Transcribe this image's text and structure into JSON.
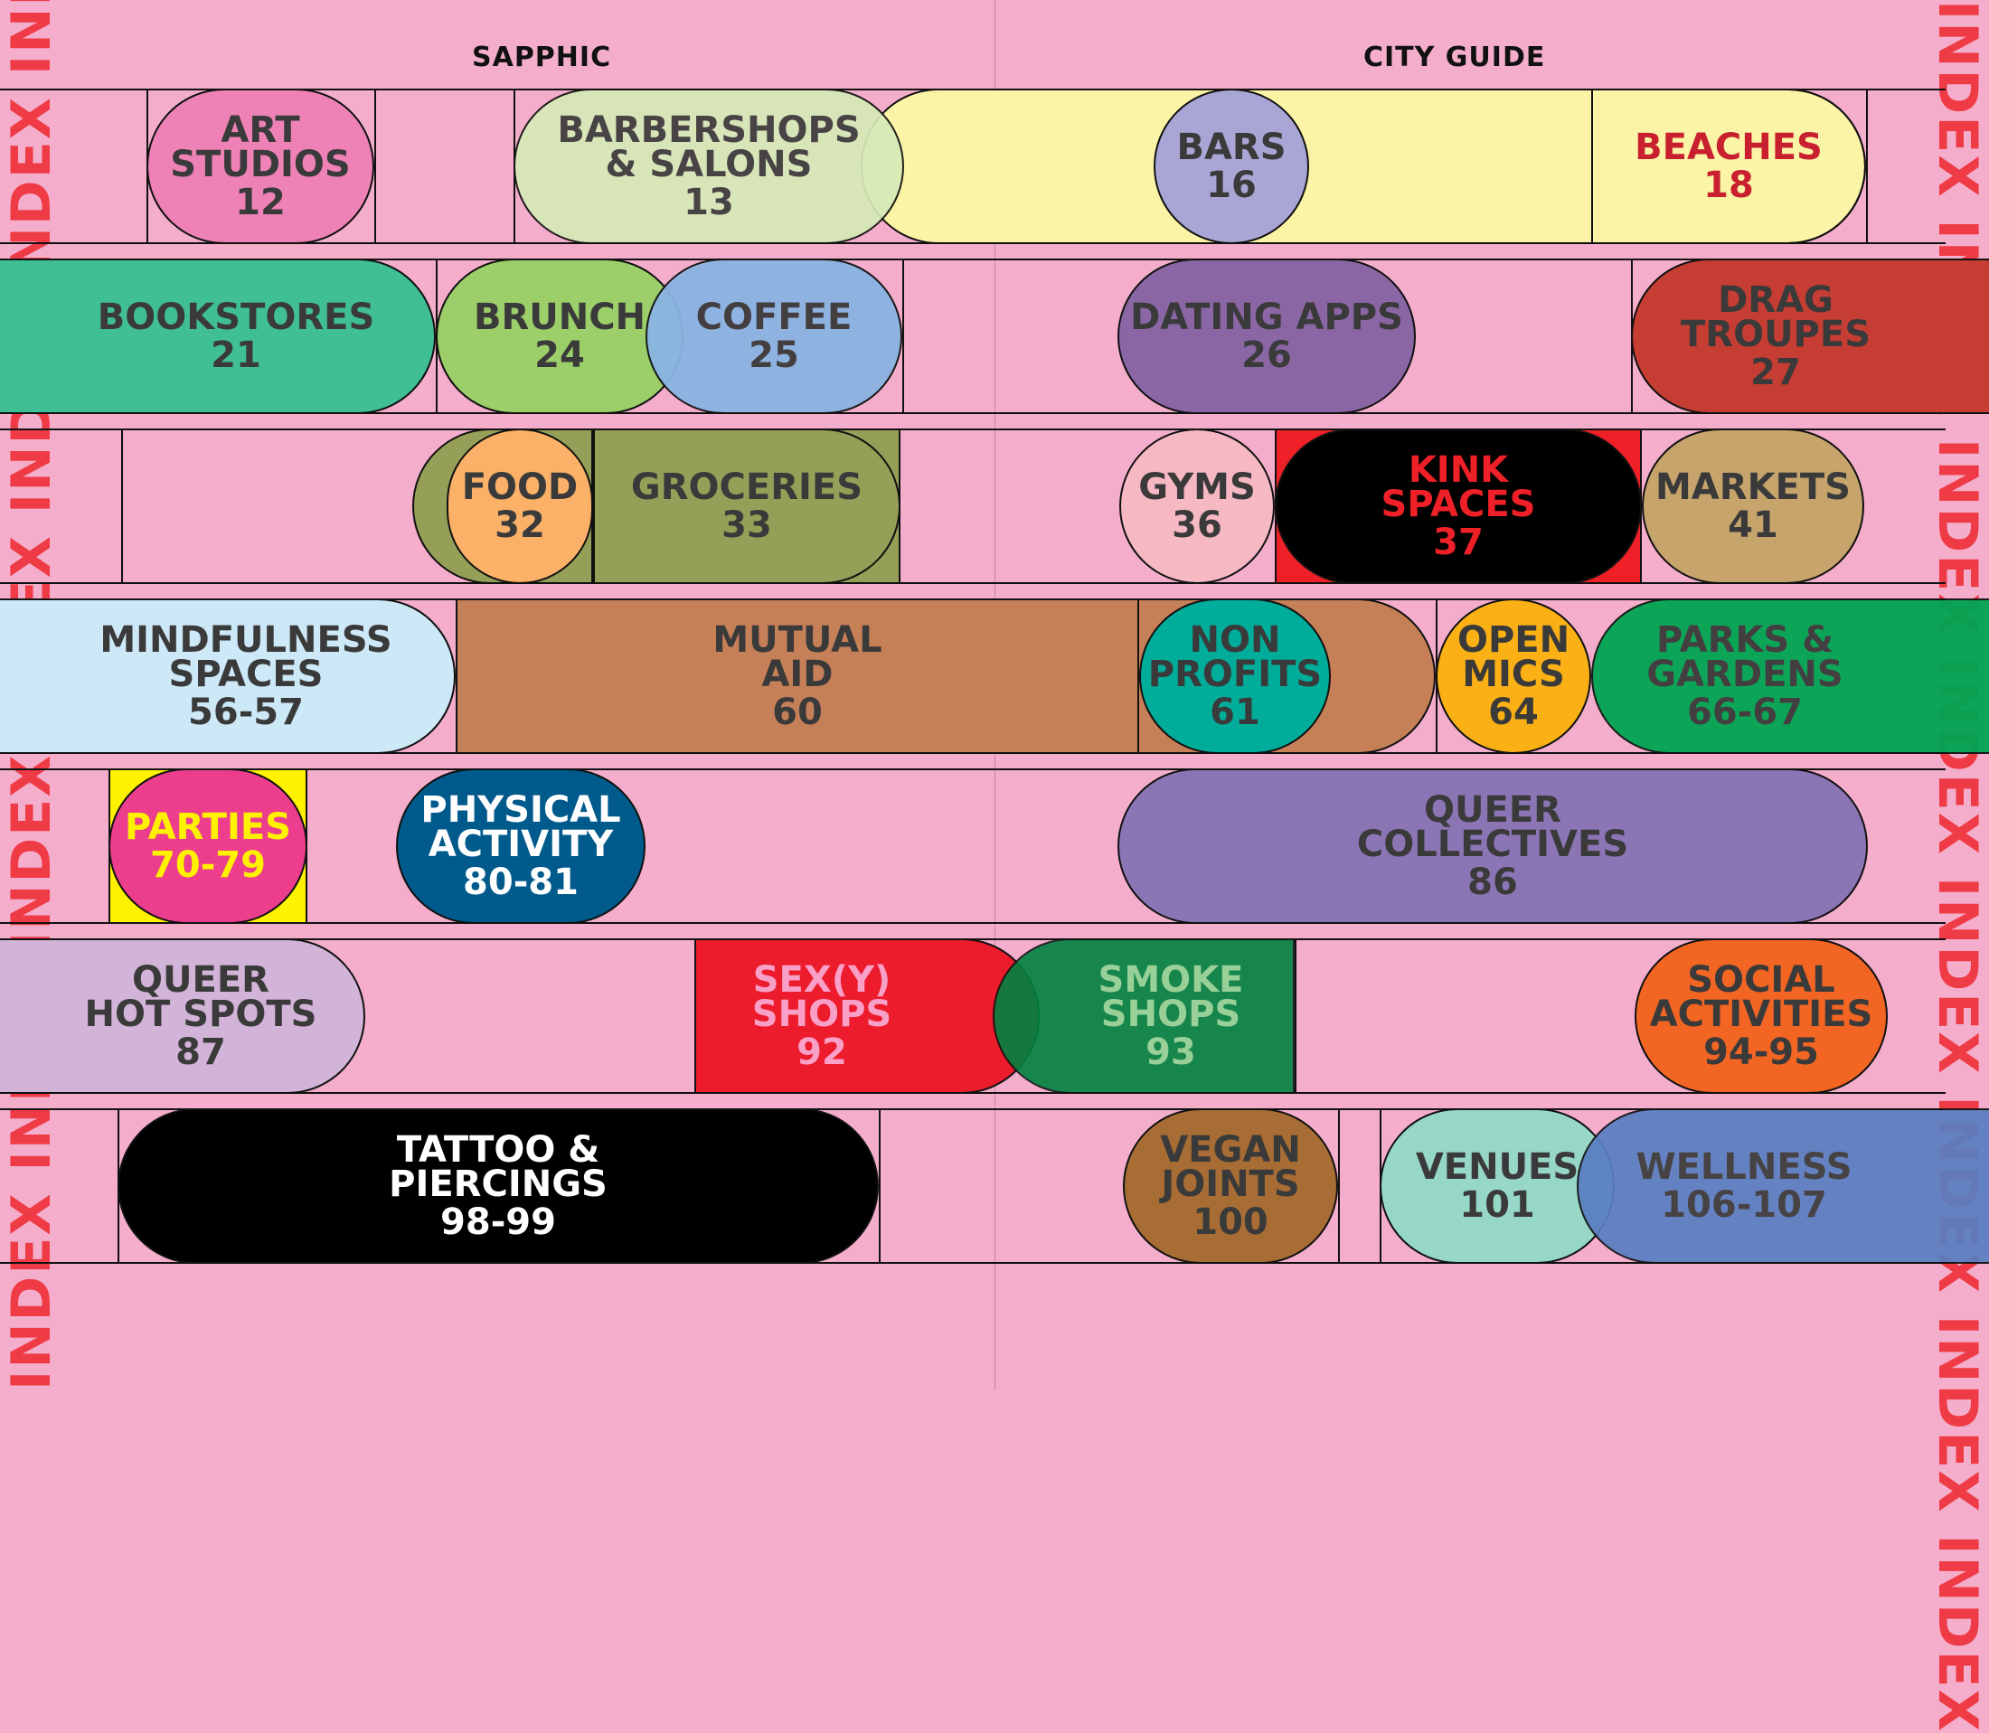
{
  "header": {
    "left_title": "SAPPHIC",
    "right_title": "CITY GUIDE"
  },
  "side_text": "INDEX INDEX INDEX INDEX INDEX INDEX INDEX INDEX",
  "colors": {
    "background": "#f4aecb",
    "side_text": "#ef3b45"
  },
  "entries": [
    {
      "label": "ART\nSTUDIOS",
      "pages": "12"
    },
    {
      "label": "BARBERSHOPS\n& SALONS",
      "pages": "13"
    },
    {
      "label": "BARS",
      "pages": "16"
    },
    {
      "label": "BEACHES",
      "pages": "18"
    },
    {
      "label": "BOOKSTORES",
      "pages": "21"
    },
    {
      "label": "BRUNCH",
      "pages": "24"
    },
    {
      "label": "COFFEE",
      "pages": "25"
    },
    {
      "label": "DATING APPS",
      "pages": "26"
    },
    {
      "label": "DRAG\nTROUPES",
      "pages": "27"
    },
    {
      "label": "FOOD",
      "pages": "32"
    },
    {
      "label": "GROCERIES",
      "pages": "33"
    },
    {
      "label": "GYMS",
      "pages": "36"
    },
    {
      "label": "KINK\nSPACES",
      "pages": "37"
    },
    {
      "label": "MARKETS",
      "pages": "41"
    },
    {
      "label": "MINDFULNESS\nSPACES",
      "pages": "56-57"
    },
    {
      "label": "MUTUAL\nAID",
      "pages": "60"
    },
    {
      "label": "NON\nPROFITS",
      "pages": "61"
    },
    {
      "label": "OPEN\nMICS",
      "pages": "64"
    },
    {
      "label": "PARKS &\nGARDENS",
      "pages": "66-67"
    },
    {
      "label": "PARTIES",
      "pages": "70-79"
    },
    {
      "label": "PHYSICAL\nACTIVITY",
      "pages": "80-81"
    },
    {
      "label": "QUEER\nCOLLECTIVES",
      "pages": "86"
    },
    {
      "label": "QUEER\nHOT SPOTS",
      "pages": "87"
    },
    {
      "label": "SEX(Y)\nSHOPS",
      "pages": "92"
    },
    {
      "label": "SMOKE\nSHOPS",
      "pages": "93"
    },
    {
      "label": "SOCIAL\nACTIVITIES",
      "pages": "94-95"
    },
    {
      "label": "TATTOO &\nPIERCINGS",
      "pages": "98-99"
    },
    {
      "label": "VEGAN\nJOINTS",
      "pages": "100"
    },
    {
      "label": "VENUES",
      "pages": "101"
    },
    {
      "label": "WELLNESS",
      "pages": "106-107"
    }
  ],
  "entry_styles": [
    {
      "fill": "#ee82b6",
      "text": "#3a3a3a"
    },
    {
      "fill": "#d6eab7",
      "text": "#3a3a3a"
    },
    {
      "fill": "#a9a6d6",
      "text": "#3a3a3a"
    },
    {
      "fill": "#fbf3a5",
      "text": "#c8202f"
    },
    {
      "fill": "#3fbf93",
      "text": "#3a3a3a"
    },
    {
      "fill": "#9ccf6a",
      "text": "#3a3a3a"
    },
    {
      "fill": "#8ab4e3",
      "text": "#3a3a3a"
    },
    {
      "fill": "#8a66a5",
      "text": "#3a3a3a"
    },
    {
      "fill": "#c53d33",
      "text": "#3a3a3a"
    },
    {
      "fill": "#fbb168",
      "text": "#3a3a3a"
    },
    {
      "fill": "#969f57",
      "text": "#3a3a3a"
    },
    {
      "fill": "#f6b8c2",
      "text": "#3a3a3a"
    },
    {
      "fill": "#000000",
      "text": "#ef2027"
    },
    {
      "fill": "#c7a46c",
      "text": "#3a3a3a"
    },
    {
      "fill": "#cde9f8",
      "text": "#3a3a3a"
    },
    {
      "fill": "#c68058",
      "text": "#3a3a3a"
    },
    {
      "fill": "#00ad9a",
      "text": "#3a3a3a"
    },
    {
      "fill": "#fbb116",
      "text": "#3a3a3a"
    },
    {
      "fill": "#00a552",
      "text": "#3a3a3a"
    },
    {
      "fill": "#ec3e8d",
      "text": "#fff200"
    },
    {
      "fill": "#005a8c",
      "text": "#ffffff"
    },
    {
      "fill": "#8c75b5",
      "text": "#3a3a3a"
    },
    {
      "fill": "#d2b4d8",
      "text": "#3a3a3a"
    },
    {
      "fill": "#ec1c2d",
      "text": "#f8a0c8"
    },
    {
      "fill": "#008240",
      "text": "#8fd493"
    },
    {
      "fill": "#f26523",
      "text": "#3a3a3a"
    },
    {
      "fill": "#000000",
      "text": "#ffffff"
    },
    {
      "fill": "#a86d34",
      "text": "#3a3a3a"
    },
    {
      "fill": "#96d7c8",
      "text": "#3a3a3a"
    },
    {
      "fill": "#5a7fc1",
      "text": "#3a3a3a"
    }
  ]
}
